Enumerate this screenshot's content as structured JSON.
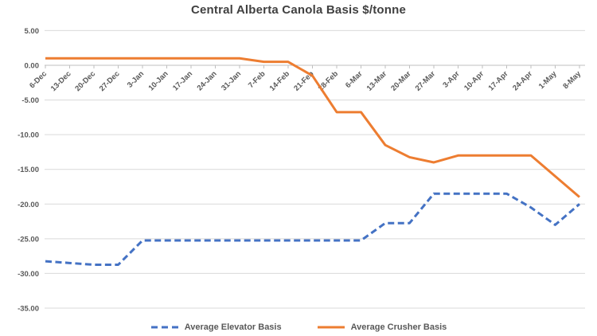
{
  "title": "Central Alberta Canola Basis $/tonne",
  "chart_data": {
    "type": "line",
    "title": "Central Alberta Canola Basis $/tonne",
    "xlabel": "",
    "ylabel": "",
    "categories": [
      "6-Dec",
      "13-Dec",
      "20-Dec",
      "27-Dec",
      "3-Jan",
      "10-Jan",
      "17-Jan",
      "24-Jan",
      "31-Jan",
      "7-Feb",
      "14-Feb",
      "21-Feb",
      "28-Feb",
      "6-Mar",
      "13-Mar",
      "20-Mar",
      "27-Mar",
      "3-Apr",
      "10-Apr",
      "17-Apr",
      "24-Apr",
      "1-May",
      "8-May"
    ],
    "series": [
      {
        "name": "Average Elevator Basis",
        "color": "#4472C4",
        "line_style": "dashed",
        "values": [
          -28.25,
          -28.5,
          -28.75,
          -28.75,
          -25.25,
          -25.25,
          -25.25,
          -25.25,
          -25.25,
          -25.25,
          -25.25,
          -25.25,
          -25.25,
          -25.25,
          -22.75,
          -22.75,
          -18.5,
          -18.5,
          -18.5,
          -18.5,
          -20.5,
          -23,
          -20
        ]
      },
      {
        "name": "Average Crusher Basis",
        "color": "#ED7D31",
        "line_style": "solid",
        "values": [
          1,
          1,
          1,
          1,
          1,
          1,
          1,
          1,
          1,
          0.5,
          0.5,
          -1.5,
          -6.75,
          -6.75,
          -11.5,
          -13.25,
          -14,
          -13,
          -13,
          -13,
          -13,
          -16,
          -19
        ]
      }
    ],
    "ylim": [
      -35,
      5
    ],
    "ytick_values": [
      5,
      0,
      -5,
      -10,
      -15,
      -20,
      -25,
      -30,
      -35
    ],
    "ytick_labels": [
      "5.00",
      "0.00",
      "-5.00",
      "-10.00",
      "-15.00",
      "-20.00",
      "-25.00",
      "-30.00",
      "-35.00"
    ],
    "grid": true,
    "legend_position": "bottom",
    "gridline_color": "#d9d9d9",
    "axis_color": "#bfbfbf",
    "tick_label_color": "#595959",
    "title_color": "#404040",
    "background": "#ffffff"
  }
}
